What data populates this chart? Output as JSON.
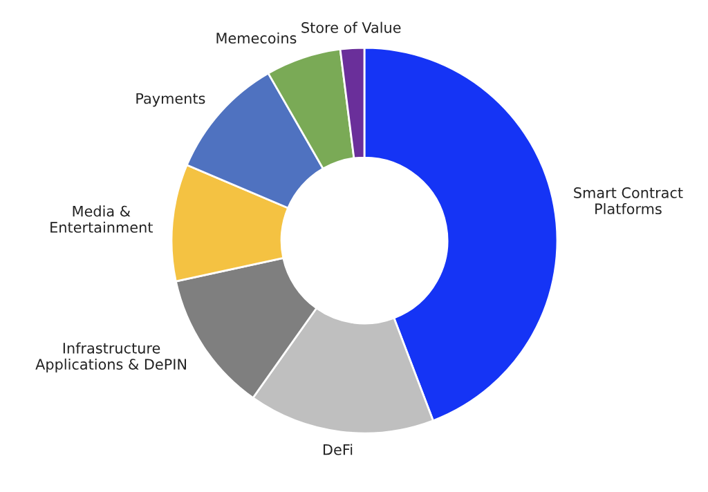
{
  "chart_data": {
    "type": "donut",
    "categories": [
      "Smart Contract\nPlatforms",
      "DeFi",
      "Infrastructure\nApplications & DePIN",
      "Media &\nEntertainment",
      "Payments",
      "Memecoins",
      "Store of Value"
    ],
    "values": [
      44.2,
      15.6,
      11.8,
      9.8,
      10.3,
      6.3,
      2.0
    ],
    "colors": [
      "#1534f5",
      "#bfbfbf",
      "#7f7f7f",
      "#f4c242",
      "#4f72c0",
      "#7aaa56",
      "#6a2f9a"
    ],
    "legend": false
  }
}
